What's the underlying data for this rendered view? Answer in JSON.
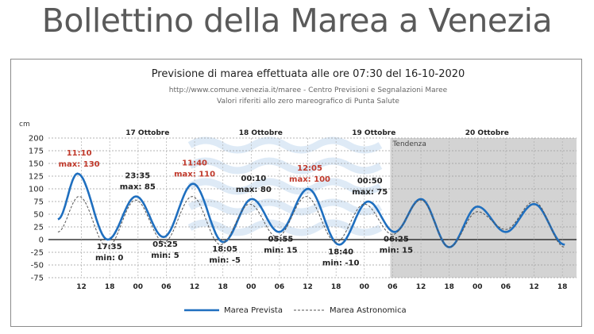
{
  "page": {
    "title": "Bollettino della Marea a Venezia"
  },
  "chart_data": {
    "type": "line",
    "title": "Previsione di marea effettuata alle ore 07:30 del 16-10-2020",
    "subtitle_1": "http://www.comune.venezia.it/maree - Centro Previsioni e Segnalazioni Maree",
    "subtitle_2": "Valori riferiti allo zero mareografico di Punta Salute",
    "ylabel": "cm",
    "ylim": [
      -75,
      200
    ],
    "yticks": [
      "200",
      "175",
      "150",
      "125",
      "100",
      "75",
      "50",
      "25",
      "0",
      "-25",
      "-50",
      "-75"
    ],
    "xlim": [
      5,
      117
    ],
    "xticks": [
      {
        "h": 12,
        "label": "12"
      },
      {
        "h": 18,
        "label": "18"
      },
      {
        "h": 24,
        "label": "00"
      },
      {
        "h": 30,
        "label": "06"
      },
      {
        "h": 36,
        "label": "12"
      },
      {
        "h": 42,
        "label": "18"
      },
      {
        "h": 48,
        "label": "00"
      },
      {
        "h": 54,
        "label": "06"
      },
      {
        "h": 60,
        "label": "12"
      },
      {
        "h": 66,
        "label": "18"
      },
      {
        "h": 72,
        "label": "00"
      },
      {
        "h": 78,
        "label": "06"
      },
      {
        "h": 84,
        "label": "12"
      },
      {
        "h": 90,
        "label": "18"
      },
      {
        "h": 96,
        "label": "00"
      },
      {
        "h": 102,
        "label": "06"
      },
      {
        "h": 108,
        "label": "12"
      },
      {
        "h": 114,
        "label": "18"
      }
    ],
    "days": [
      {
        "h": 24,
        "label": "17 Ottobre"
      },
      {
        "h": 48,
        "label": "18 Ottobre"
      },
      {
        "h": 72,
        "label": "19 Ottobre"
      },
      {
        "h": 96,
        "label": "20 Ottobre"
      }
    ],
    "tendency": {
      "start_h": 77.5,
      "label": "Tendenza"
    },
    "grid": true,
    "series": [
      {
        "name": "Marea Prevista",
        "color": "#1f6fbf",
        "dashed": false,
        "points": [
          [
            7,
            40
          ],
          [
            11.17,
            130
          ],
          [
            17.58,
            0
          ],
          [
            23.58,
            85
          ],
          [
            29.42,
            5
          ],
          [
            35.67,
            110
          ],
          [
            42.08,
            -5
          ],
          [
            48.17,
            80
          ],
          [
            53.92,
            15
          ],
          [
            60.08,
            100
          ],
          [
            66.67,
            -10
          ],
          [
            72.83,
            75
          ],
          [
            78.42,
            15
          ],
          [
            84,
            80
          ],
          [
            90,
            -15
          ],
          [
            96,
            65
          ],
          [
            102,
            15
          ],
          [
            108,
            70
          ],
          [
            114.5,
            -10
          ]
        ]
      },
      {
        "name": "Marea Astronomica",
        "color": "#555555",
        "dashed": true,
        "points": [
          [
            7,
            15
          ],
          [
            11.5,
            85
          ],
          [
            17.5,
            -15
          ],
          [
            23.5,
            78
          ],
          [
            29.5,
            -5
          ],
          [
            35.5,
            85
          ],
          [
            41.5,
            -10
          ],
          [
            47.7,
            70
          ],
          [
            53.5,
            5
          ],
          [
            59.7,
            85
          ],
          [
            66,
            -5
          ],
          [
            72,
            70
          ],
          [
            78,
            10
          ],
          [
            84,
            78
          ],
          [
            90,
            -15
          ],
          [
            96,
            55
          ],
          [
            102,
            20
          ],
          [
            108,
            75
          ],
          [
            114.5,
            -15
          ]
        ]
      }
    ],
    "annotations": [
      {
        "t1": "11:10",
        "t2": "max: 130",
        "h": 11.17,
        "v": 130,
        "pos": "above",
        "color": "#c0392b"
      },
      {
        "t1": "17:35",
        "t2": "min: 0",
        "h": 17.58,
        "v": 0,
        "pos": "below",
        "color": "#222222"
      },
      {
        "t1": "23:35",
        "t2": "max: 85",
        "h": 23.58,
        "v": 85,
        "pos": "above",
        "color": "#222222"
      },
      {
        "t1": "05:25",
        "t2": "min: 5",
        "h": 29.42,
        "v": 5,
        "pos": "below",
        "color": "#222222"
      },
      {
        "t1": "11:40",
        "t2": "max: 110",
        "h": 35.67,
        "v": 110,
        "pos": "above",
        "color": "#c0392b"
      },
      {
        "t1": "18:05",
        "t2": "min: -5",
        "h": 42.08,
        "v": -5,
        "pos": "below",
        "color": "#222222"
      },
      {
        "t1": "00:10",
        "t2": "max: 80",
        "h": 48.17,
        "v": 80,
        "pos": "above",
        "color": "#222222"
      },
      {
        "t1": "05:55",
        "t2": "min: 15",
        "h": 53.92,
        "v": 15,
        "pos": "below",
        "color": "#222222"
      },
      {
        "t1": "12:05",
        "t2": "max: 100",
        "h": 60.08,
        "v": 100,
        "pos": "above",
        "color": "#c0392b"
      },
      {
        "t1": "18:40",
        "t2": "min: -10",
        "h": 66.67,
        "v": -10,
        "pos": "below",
        "color": "#222222"
      },
      {
        "t1": "00:50",
        "t2": "max: 75",
        "h": 72.83,
        "v": 75,
        "pos": "above",
        "color": "#222222"
      },
      {
        "t1": "06:25",
        "t2": "min: 15",
        "h": 78.42,
        "v": 15,
        "pos": "below",
        "color": "#222222"
      }
    ],
    "legend": [
      "Marea Prevista",
      "Marea Astronomica"
    ],
    "legend_position": "bottom"
  }
}
